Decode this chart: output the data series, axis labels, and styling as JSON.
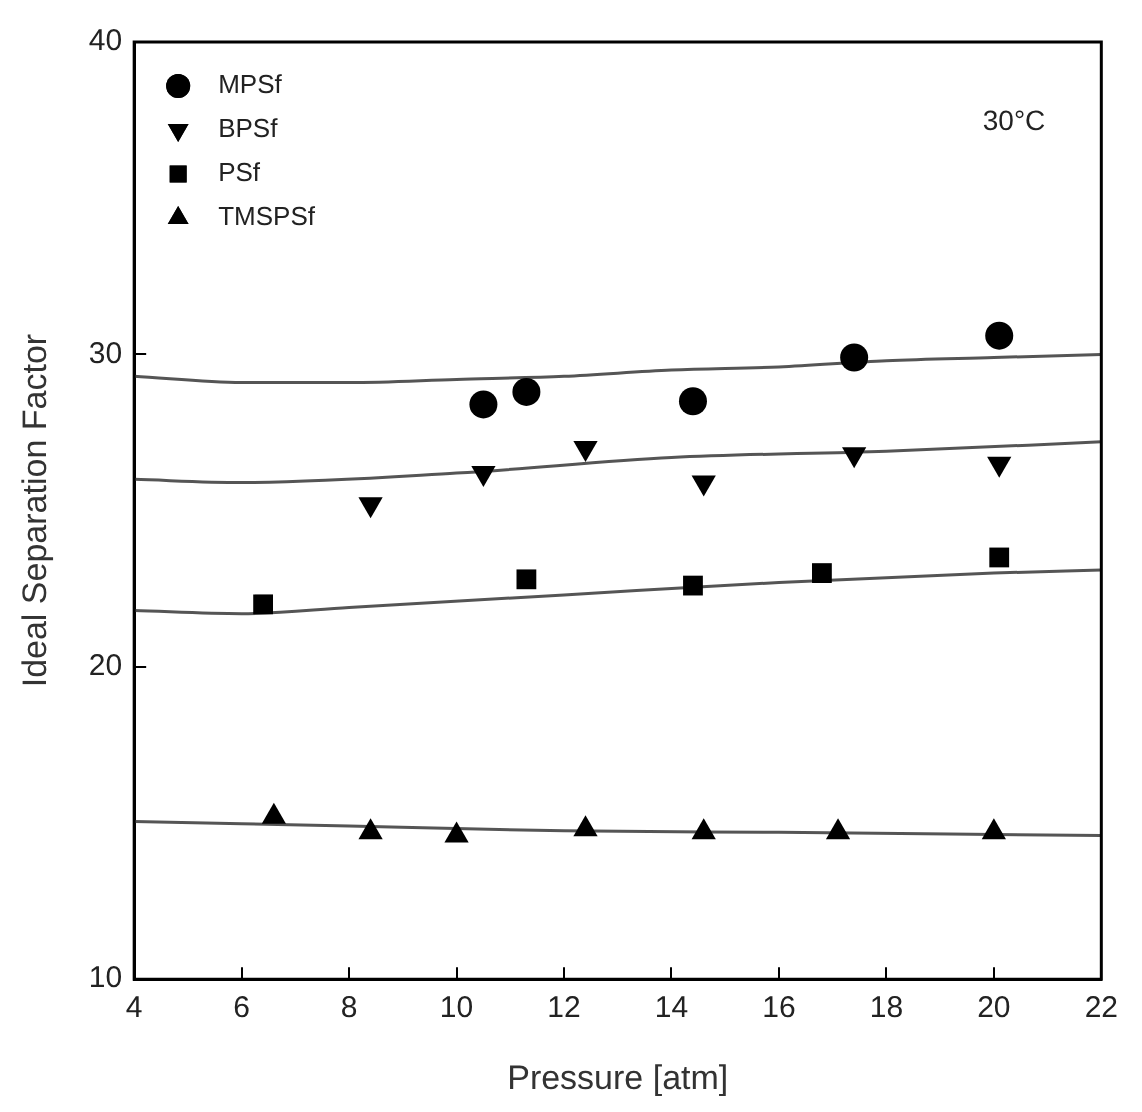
{
  "chart_data": {
    "type": "scatter",
    "xlabel": "Pressure [atm]",
    "ylabel": "Ideal Separation Factor",
    "xlim": [
      4,
      22
    ],
    "xticks": [
      4,
      6,
      8,
      10,
      12,
      14,
      16,
      18,
      20,
      22
    ],
    "ylim": [
      10,
      40
    ],
    "yticks": [
      10,
      20,
      30,
      40
    ],
    "grid": false,
    "legend": "top left",
    "annotations": [
      "30°C"
    ],
    "series": [
      {
        "name": "MPSf",
        "color": "#000000",
        "marker": "circle",
        "x": [
          10.5,
          11.3,
          14.4,
          17.4,
          20.1
        ],
        "values": [
          28.4,
          28.8,
          28.5,
          29.9,
          30.6
        ]
      },
      {
        "name": "BPSf",
        "color": "#000000",
        "marker": "triangle_down",
        "x": [
          8.4,
          10.5,
          12.4,
          14.6,
          17.4,
          20.1
        ],
        "values": [
          25.2,
          26.2,
          27.0,
          25.9,
          26.8,
          26.5
        ]
      },
      {
        "name": "PSf",
        "color": "#000000",
        "marker": "square",
        "x": [
          6.4,
          11.3,
          14.4,
          16.8,
          20.1
        ],
        "values": [
          22.0,
          22.8,
          22.6,
          23.0,
          23.5
        ]
      },
      {
        "name": "TMSPSf",
        "color": "#000000",
        "marker": "triangle",
        "x": [
          6.6,
          8.4,
          10.0,
          12.4,
          14.6,
          17.1,
          20.0
        ],
        "values": [
          15.2,
          14.7,
          14.6,
          14.8,
          14.7,
          14.7,
          14.7
        ]
      },
      {
        "type": "line",
        "color": "#555555",
        "marker": "none",
        "x": [
          4,
          6,
          8,
          10,
          12,
          14,
          16,
          18,
          20,
          22
        ],
        "values": [
          29.3,
          29.1,
          29.1,
          29.2,
          29.3,
          29.5,
          29.6,
          29.8,
          29.9,
          30.0
        ]
      },
      {
        "type": "line",
        "color": "#555555",
        "marker": "none",
        "x": [
          4,
          6,
          10,
          14,
          18,
          22
        ],
        "values": [
          26.0,
          25.9,
          26.2,
          26.7,
          26.9,
          27.2
        ]
      },
      {
        "type": "line",
        "color": "#555555",
        "marker": "none",
        "x": [
          4,
          6,
          8,
          12,
          16,
          20,
          22
        ],
        "values": [
          21.8,
          21.7,
          21.9,
          22.3,
          22.7,
          23.0,
          23.1
        ]
      },
      {
        "type": "line",
        "color": "#555555",
        "marker": "none",
        "x": [
          4,
          8,
          12,
          16,
          22
        ],
        "values": [
          15.05,
          14.9,
          14.75,
          14.7,
          14.6
        ]
      }
    ]
  }
}
